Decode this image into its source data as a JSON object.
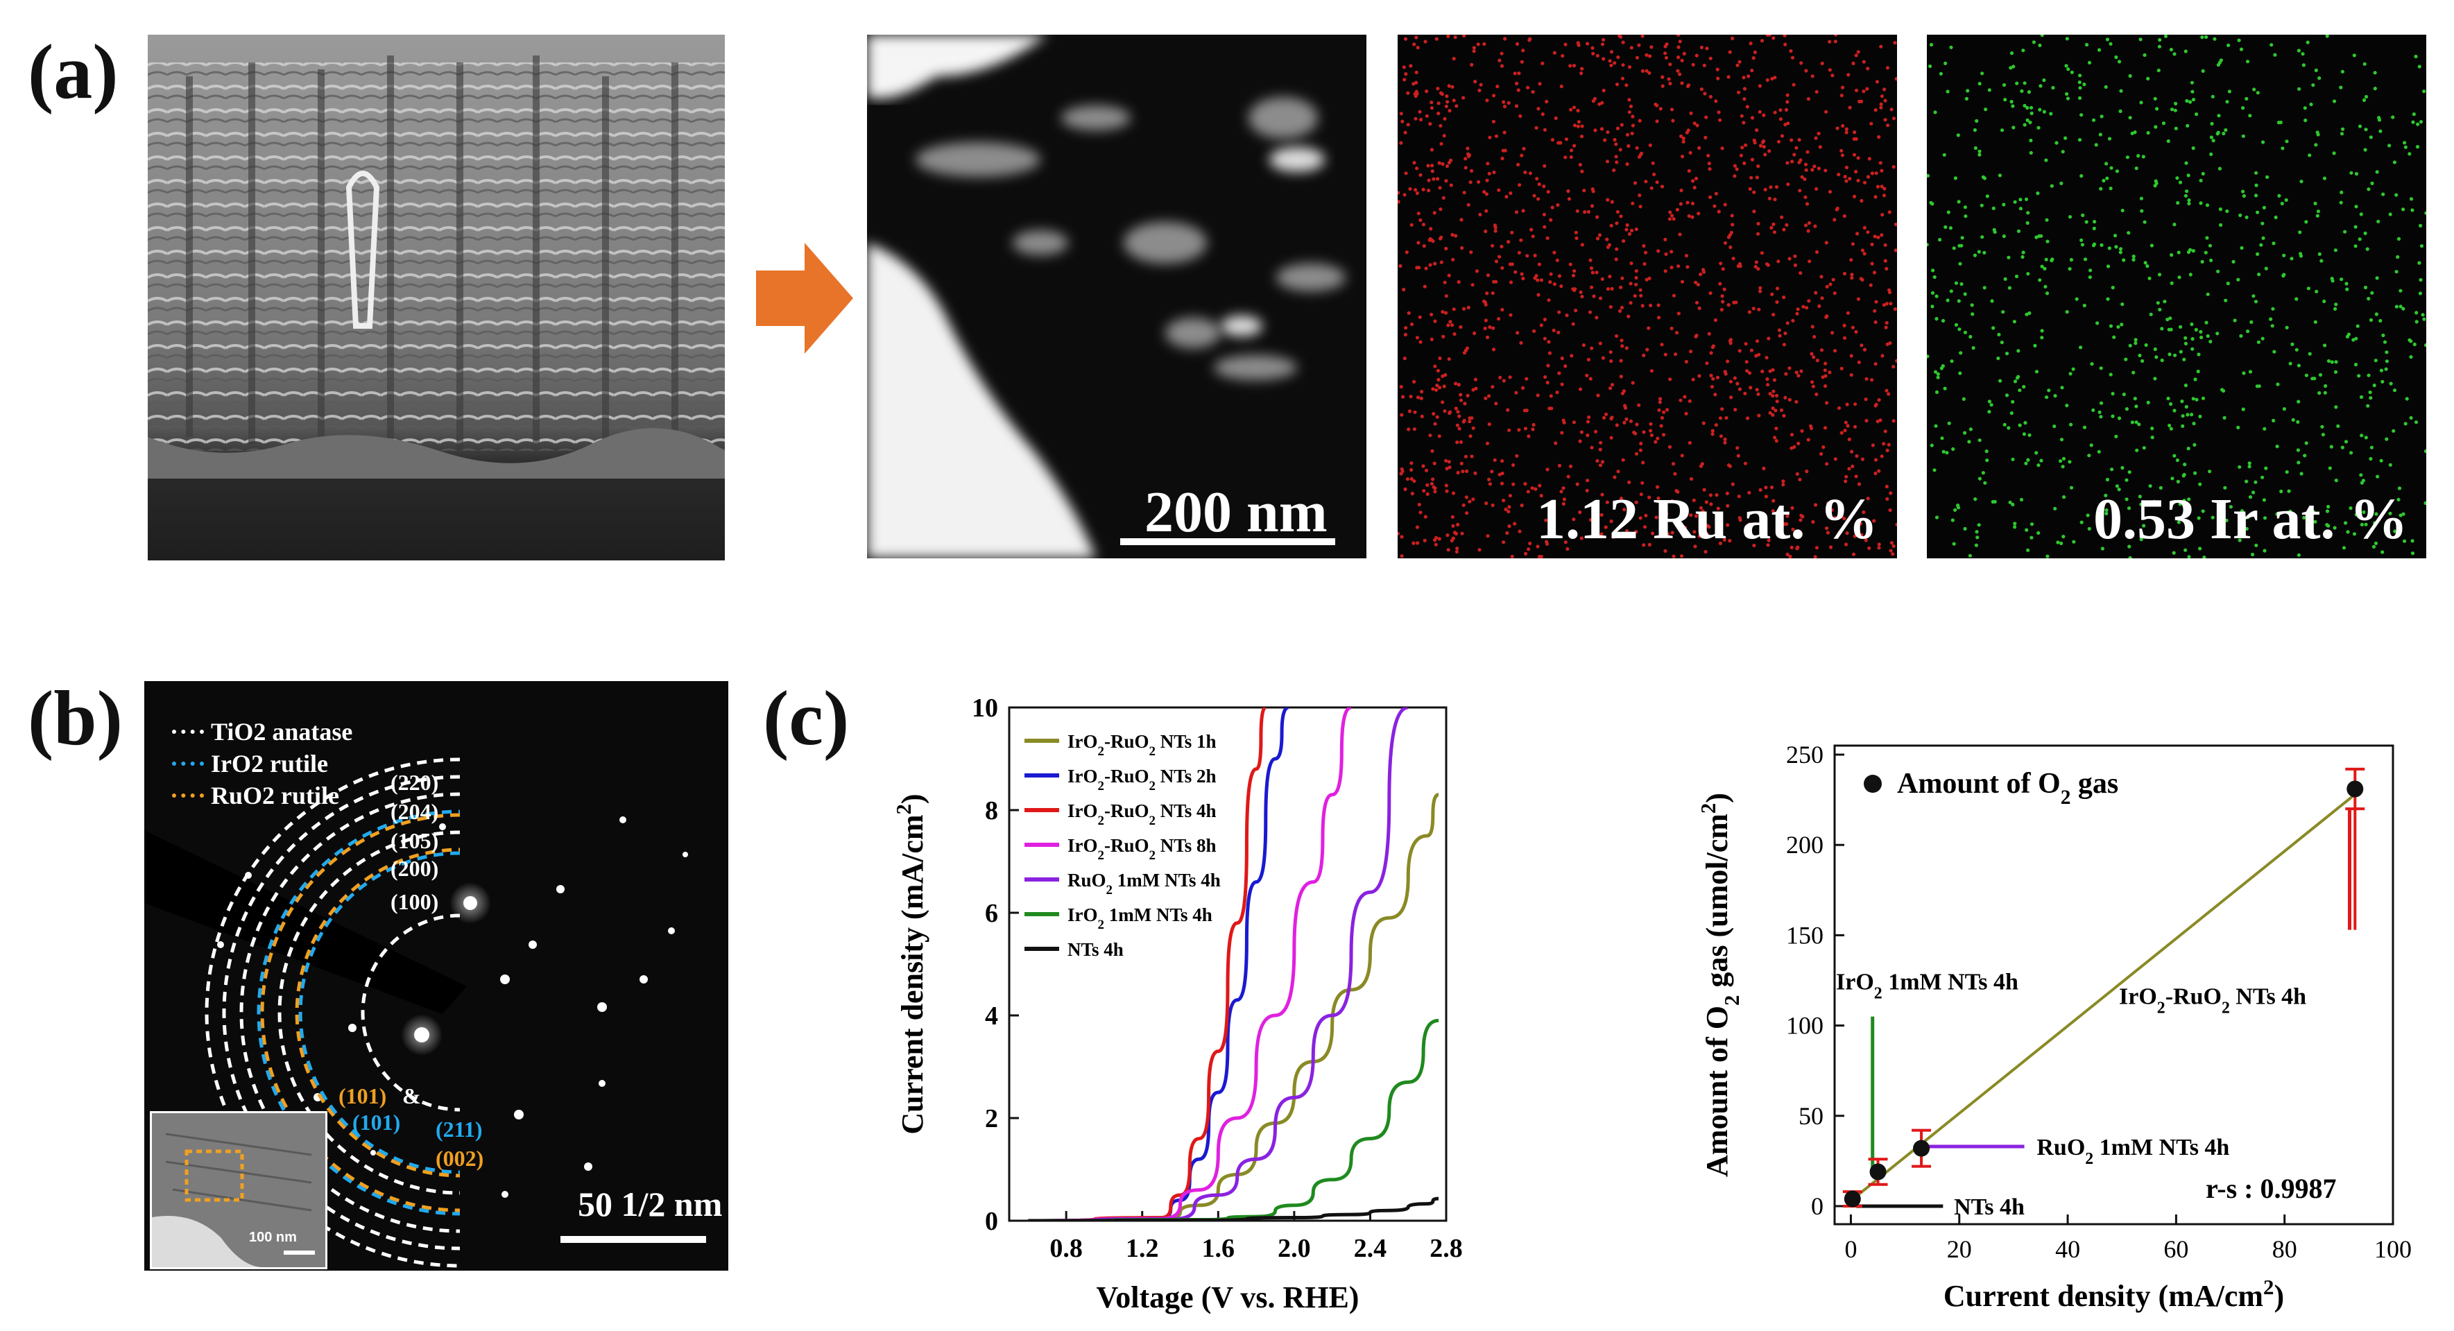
{
  "panel_labels": {
    "a": "(a)",
    "b": "(b)",
    "c": "(c)"
  },
  "panel_a": {
    "scale_bar": "200 nm",
    "ru_map_label": "1.12 Ru at. %",
    "ir_map_label": "0.53 Ir at. %",
    "colors": {
      "arrow": "#e8742a",
      "ru_dots": "#cc2020",
      "ir_dots": "#2ec82e"
    }
  },
  "panel_b": {
    "legend": [
      "TiO2 anatase",
      "IrO2 rutile",
      "RuO2 rutile"
    ],
    "legend_colors": [
      "#ffffff",
      "#22aaee",
      "#f0a020"
    ],
    "indices": {
      "i220": "(220)",
      "i204": "(204)",
      "i105": "(105)",
      "i200": "(200)",
      "i100": "(100)",
      "i101a": "(101)",
      "amp": "&",
      "i101b": "(101)",
      "i211": "(211)",
      "i002": "(002)"
    },
    "scale_bar": "50 1/2 nm",
    "inset_scale": "100 nm"
  },
  "chart_data": [
    {
      "type": "line",
      "title": "",
      "xlabel": "Voltage (V vs. RHE)",
      "ylabel": "Current density (mA/cm2)",
      "xlim": [
        0.5,
        2.8
      ],
      "ylim": [
        0,
        10
      ],
      "xticks": [
        0.8,
        1.2,
        1.6,
        2.0,
        2.4,
        2.8
      ],
      "yticks": [
        0,
        2,
        4,
        6,
        8,
        10
      ],
      "series": [
        {
          "name": "IrO2-RuO2 NTs 1h",
          "color": "#8a8a26",
          "x": [
            0.6,
            1.3,
            1.5,
            1.7,
            1.9,
            2.1,
            2.3,
            2.5,
            2.7,
            2.76
          ],
          "y": [
            0,
            0.03,
            0.3,
            0.9,
            1.9,
            3.1,
            4.5,
            5.9,
            7.5,
            8.3
          ]
        },
        {
          "name": "IrO2-RuO2 NTs 2h",
          "color": "#1a1ad0",
          "x": [
            0.6,
            1.3,
            1.4,
            1.5,
            1.6,
            1.7,
            1.8,
            1.9,
            1.97
          ],
          "y": [
            0,
            0.05,
            0.4,
            1.2,
            2.5,
            4.3,
            6.6,
            9.0,
            10.0
          ]
        },
        {
          "name": "IrO2-RuO2 NTs 4h",
          "color": "#e01818",
          "x": [
            0.6,
            1.3,
            1.4,
            1.5,
            1.6,
            1.7,
            1.8,
            1.85
          ],
          "y": [
            0,
            0.06,
            0.5,
            1.6,
            3.3,
            5.8,
            8.8,
            10.0
          ]
        },
        {
          "name": "IrO2-RuO2 NTs 8h",
          "color": "#e020e0",
          "x": [
            0.6,
            1.3,
            1.5,
            1.7,
            1.9,
            2.1,
            2.2,
            2.3
          ],
          "y": [
            0,
            0.04,
            0.6,
            2.0,
            4.0,
            6.6,
            8.3,
            10.0
          ]
        },
        {
          "name": "RuO2 1mM NTs 4h",
          "color": "#8a22e0",
          "x": [
            0.6,
            1.35,
            1.6,
            1.8,
            2.0,
            2.2,
            2.4,
            2.6
          ],
          "y": [
            0,
            0.03,
            0.5,
            1.2,
            2.4,
            4.0,
            6.4,
            10.0
          ]
        },
        {
          "name": "IrO2 1mM NTs 4h",
          "color": "#1f8a1f",
          "x": [
            0.6,
            1.5,
            1.8,
            2.0,
            2.2,
            2.4,
            2.6,
            2.76
          ],
          "y": [
            0,
            0.02,
            0.08,
            0.3,
            0.8,
            1.6,
            2.7,
            3.9
          ]
        },
        {
          "name": "NTs 4h",
          "color": "#111111",
          "x": [
            0.6,
            1.5,
            2.0,
            2.3,
            2.5,
            2.7,
            2.76
          ],
          "y": [
            0,
            0.01,
            0.06,
            0.12,
            0.2,
            0.33,
            0.43
          ]
        }
      ]
    },
    {
      "type": "scatter",
      "title": "",
      "xlabel": "Current density (mA/cm2)",
      "ylabel": "Amount of O2 gas (umol/cm2)",
      "xlim": [
        -3,
        100
      ],
      "ylim": [
        -10,
        255
      ],
      "xticks": [
        0,
        20,
        40,
        60,
        80,
        100
      ],
      "yticks": [
        0,
        50,
        100,
        150,
        200,
        250
      ],
      "legend": "Amount of O2 gas",
      "series": [
        {
          "name": "Amount of O2 gas",
          "x": [
            0.3,
            5,
            13,
            93
          ],
          "y": [
            4,
            19,
            32,
            231
          ],
          "err_low": [
            4,
            7,
            10,
            78
          ],
          "err_high": [
            4,
            7,
            10,
            11
          ]
        }
      ],
      "fit": {
        "x": [
          0,
          93
        ],
        "y": [
          3,
          228
        ],
        "color": "#8a8a26"
      },
      "annotations": [
        {
          "text": "IrO2 1mM NTs 4h",
          "color": "#1f8a1f"
        },
        {
          "text": "IrO2-RuO2 NTs 4h",
          "color": "#e01818"
        },
        {
          "text": "RuO2 1mM NTs 4h",
          "color": "#8a22e0"
        },
        {
          "text": "NTs 4h",
          "color": "#111111"
        }
      ],
      "r_label": "r-s : 0.9987"
    }
  ]
}
